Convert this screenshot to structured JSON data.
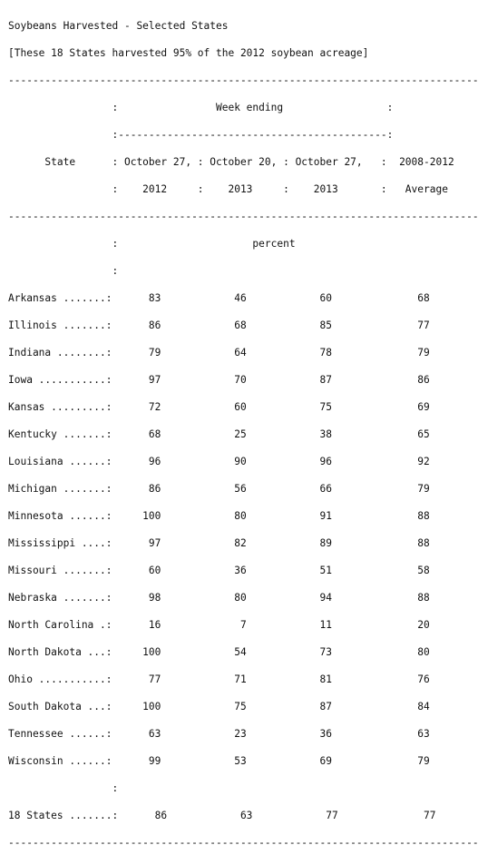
{
  "report": {
    "title": "Soybeans Harvested - Selected States",
    "subtitle": "[These 18 States harvested 95% of the 2012 soybean acreage]",
    "header_lines": [
      "-----------------------------------------------------------------------------",
      "                 :                Week ending                 :",
      "                 :--------------------------------------------:",
      "      State      : October 27, : October 20, : October 27,   :  2008-2012",
      "                 :    2012     :    2013     :    2013       :   Average",
      "-----------------------------------------------------------------------------",
      "                 :                      percent",
      "                 :"
    ],
    "rows": [
      "Arkansas .......:      83            46            60              68",
      "Illinois .......:      86            68            85              77",
      "Indiana ........:      79            64            78              79",
      "Iowa ...........:      97            70            87              86",
      "Kansas .........:      72            60            75              69",
      "Kentucky .......:      68            25            38              65",
      "Louisiana ......:      96            90            96              92",
      "Michigan .......:      86            56            66              79",
      "Minnesota ......:     100            80            91              88",
      "Mississippi ....:      97            82            89              88",
      "Missouri .......:      60            36            51              58",
      "Nebraska .......:      98            80            94              88",
      "North Carolina .:      16             7            11              20",
      "North Dakota ...:     100            54            73              80",
      "Ohio ...........:      77            71            81              76",
      "South Dakota ...:     100            75            87              84",
      "Tennessee ......:      63            23            36              63",
      "Wisconsin ......:      99            53            69              79"
    ],
    "spacer_line": "                 :",
    "total_row": "18 States .......:      86            63            77              77",
    "closing_rule": "-----------------------------------------------------------------------------"
  }
}
